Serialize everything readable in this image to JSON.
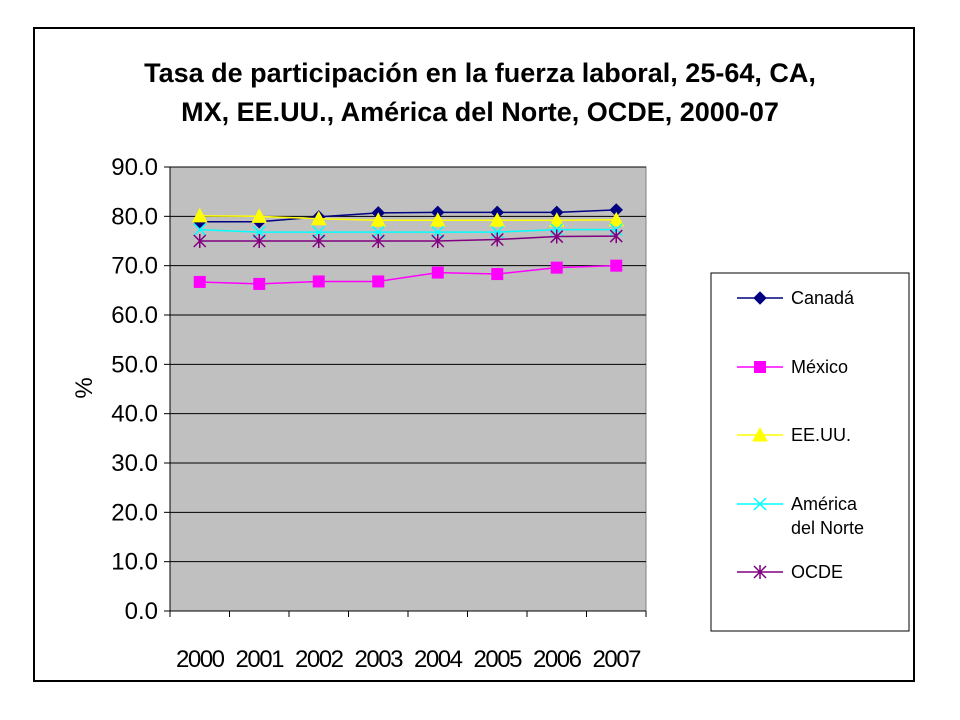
{
  "chart_data": {
    "type": "line",
    "title": "Tasa de participación en la fuerza laboral, 25-64, CA, MX, EE.UU., América del Norte, OCDE, 2000-07",
    "title_lines": [
      "Tasa de participación en la fuerza laboral, 25-64, CA,",
      "MX, EE.UU., América del Norte, OCDE, 2000-07"
    ],
    "xlabel": "",
    "ylabel": "%",
    "categories": [
      "2000",
      "2001",
      "2002",
      "2003",
      "2004",
      "2005",
      "2006",
      "2007"
    ],
    "ylim": [
      0,
      90
    ],
    "yticks": [
      "0.0",
      "10.0",
      "20.0",
      "30.0",
      "40.0",
      "50.0",
      "60.0",
      "70.0",
      "80.0",
      "90.0"
    ],
    "grid": true,
    "plot_background": "#c0c0c0",
    "legend_position": "right",
    "series": [
      {
        "name": "Canadá",
        "color": "#000080",
        "marker": "diamond",
        "values": [
          78.9,
          78.9,
          79.9,
          80.7,
          80.8,
          80.8,
          80.8,
          81.3
        ]
      },
      {
        "name": "México",
        "color": "#ff00ff",
        "marker": "square",
        "values": [
          66.7,
          66.3,
          66.8,
          66.8,
          68.6,
          68.3,
          69.6,
          70.0
        ]
      },
      {
        "name": "EE.UU.",
        "color": "#ffff00",
        "marker": "triangle",
        "values": [
          80.1,
          80.0,
          79.5,
          79.2,
          79.2,
          79.2,
          79.2,
          79.3
        ]
      },
      {
        "name": "América del Norte",
        "color": "#00ffff",
        "marker": "x",
        "values": [
          77.3,
          76.8,
          76.8,
          76.8,
          76.8,
          76.8,
          77.3,
          77.3
        ]
      },
      {
        "name": "OCDE",
        "color": "#800080",
        "marker": "star",
        "values": [
          75.0,
          75.0,
          75.0,
          75.0,
          75.0,
          75.3,
          75.9,
          76.0
        ]
      }
    ]
  }
}
